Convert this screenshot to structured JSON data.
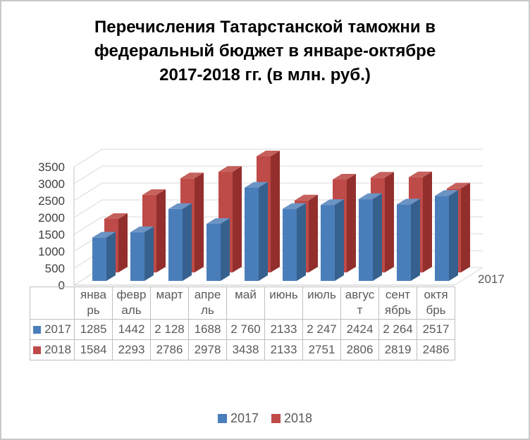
{
  "frame": {
    "border_color": "#C9C9C9",
    "background": "#FFFFFF"
  },
  "title_lines": [
    "Перечисления Татарстанской таможни в",
    "федеральный бюджет в январе-октябре",
    "2017-2018 гг. (в млн. руб.)"
  ],
  "y_axis": {
    "tick_labels": [
      "0",
      "500",
      "1000",
      "1500",
      "2000",
      "2500",
      "3000",
      "3500"
    ],
    "tick_step": 500
  },
  "depth_axis_label": "2017",
  "months_display": [
    "янва\nрь",
    "февр\nаль",
    "март",
    "апре\nль",
    "май",
    "июнь",
    "июль",
    "авгус\nт",
    "сент\nябрь",
    "октя\nбрь"
  ],
  "table": {
    "rows": [
      {
        "year": "2017",
        "marker_color": "#4A7EBB",
        "values": [
          "1285",
          "1442",
          "2 128",
          "1688",
          "2 760",
          "2133",
          "2 247",
          "2424",
          "2 264",
          "2517"
        ]
      },
      {
        "year": "2018",
        "marker_color": "#BE4B48",
        "values": [
          "1584",
          "2293",
          "2786",
          "2978",
          "3438",
          "2133",
          "2751",
          "2806",
          "2819",
          "2486"
        ]
      }
    ]
  },
  "legend": {
    "items": [
      {
        "label": "2017",
        "color": "#4A7EBB"
      },
      {
        "label": "2018",
        "color": "#BE4B48"
      }
    ]
  },
  "chart_data": {
    "type": "bar",
    "subtype": "3d-clustered-column",
    "title": "Перечисления Татарстанской таможни в федеральный бюджет в январе-октябре 2017-2018 гг. (в млн. руб.)",
    "categories": [
      "январь",
      "февраль",
      "март",
      "апрель",
      "май",
      "июнь",
      "июль",
      "август",
      "сентябрь",
      "октябрь"
    ],
    "series": [
      {
        "name": "2017",
        "values": [
          1285,
          1442,
          2128,
          1688,
          2760,
          2133,
          2247,
          2424,
          2264,
          2517
        ],
        "front": "#4A7EBB",
        "side": "#36618E",
        "top": "#6B94C5"
      },
      {
        "name": "2018",
        "values": [
          1584,
          2293,
          2786,
          2978,
          3438,
          2133,
          2751,
          2806,
          2819,
          2486
        ],
        "front": "#BE4B48",
        "side": "#922F2D",
        "top": "#C5615D"
      }
    ],
    "ylabel": "",
    "xlabel": "",
    "ylim": [
      0,
      3500
    ],
    "ytick_step": 500,
    "grid": true,
    "legend_position": "bottom",
    "depth_axis_label": "2017",
    "data_table_shown": true,
    "gridline_color": "#D9D9D9",
    "axis_line_color": "#C6C6C6",
    "text_color": "#595959"
  }
}
